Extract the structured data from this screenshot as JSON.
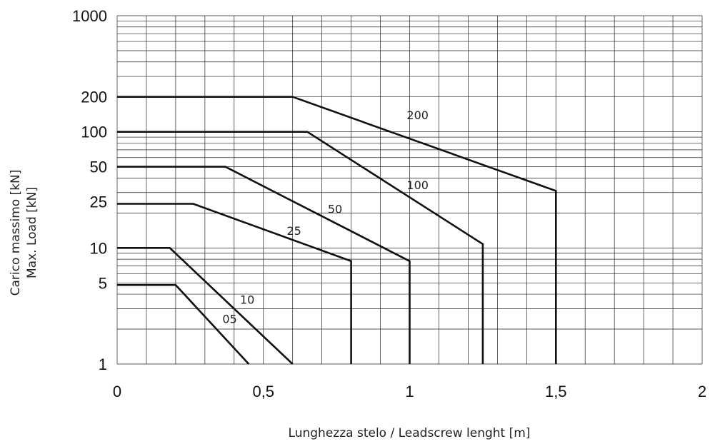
{
  "chart_data": {
    "type": "line",
    "title": "",
    "xlabel": "Lunghezza stelo / Leadscrew lenght [m]",
    "ylabel_line1": "Carico massimo [kN]",
    "ylabel_line2": "Max. Load [kN]",
    "xlim": [
      0,
      2
    ],
    "ylim": [
      1,
      1000
    ],
    "y_scale": "log",
    "grid": true,
    "x_ticks": [
      {
        "value": 0,
        "label": "0"
      },
      {
        "value": 0.5,
        "label": "0,5"
      },
      {
        "value": 1,
        "label": "1"
      },
      {
        "value": 1.5,
        "label": "1,5"
      },
      {
        "value": 2,
        "label": "2"
      }
    ],
    "y_ticks": [
      {
        "value": 1,
        "label": "1"
      },
      {
        "value": 5,
        "label": "5"
      },
      {
        "value": 10,
        "label": "10"
      },
      {
        "value": 25,
        "label": "25"
      },
      {
        "value": 50,
        "label": "50"
      },
      {
        "value": 100,
        "label": "100"
      },
      {
        "value": 200,
        "label": "200"
      },
      {
        "value": 1000,
        "label": "1000"
      }
    ],
    "series": [
      {
        "name": "200",
        "points": [
          [
            0,
            200
          ],
          [
            0.6,
            200
          ],
          [
            1.5,
            31
          ],
          [
            1.5,
            1
          ]
        ],
        "label_at": [
          0.99,
          128
        ]
      },
      {
        "name": "100",
        "points": [
          [
            0,
            100
          ],
          [
            0.65,
            100
          ],
          [
            1.25,
            10.8
          ],
          [
            1.25,
            1
          ]
        ],
        "label_at": [
          0.99,
          32
        ]
      },
      {
        "name": "50",
        "points": [
          [
            0,
            50
          ],
          [
            0.37,
            50
          ],
          [
            1.0,
            7.7
          ],
          [
            1.0,
            1
          ]
        ],
        "label_at": [
          0.72,
          20
        ]
      },
      {
        "name": "25",
        "points": [
          [
            0,
            24
          ],
          [
            0.26,
            24
          ],
          [
            0.8,
            7.7
          ],
          [
            0.8,
            1
          ]
        ],
        "label_at": [
          0.58,
          13
        ]
      },
      {
        "name": "10",
        "points": [
          [
            0,
            10
          ],
          [
            0.18,
            10
          ],
          [
            0.6,
            1
          ]
        ],
        "label_at": [
          0.42,
          3.3
        ]
      },
      {
        "name": "05",
        "points": [
          [
            0,
            4.8
          ],
          [
            0.2,
            4.8
          ],
          [
            0.45,
            1
          ]
        ],
        "label_at": [
          0.36,
          2.25
        ]
      }
    ]
  }
}
